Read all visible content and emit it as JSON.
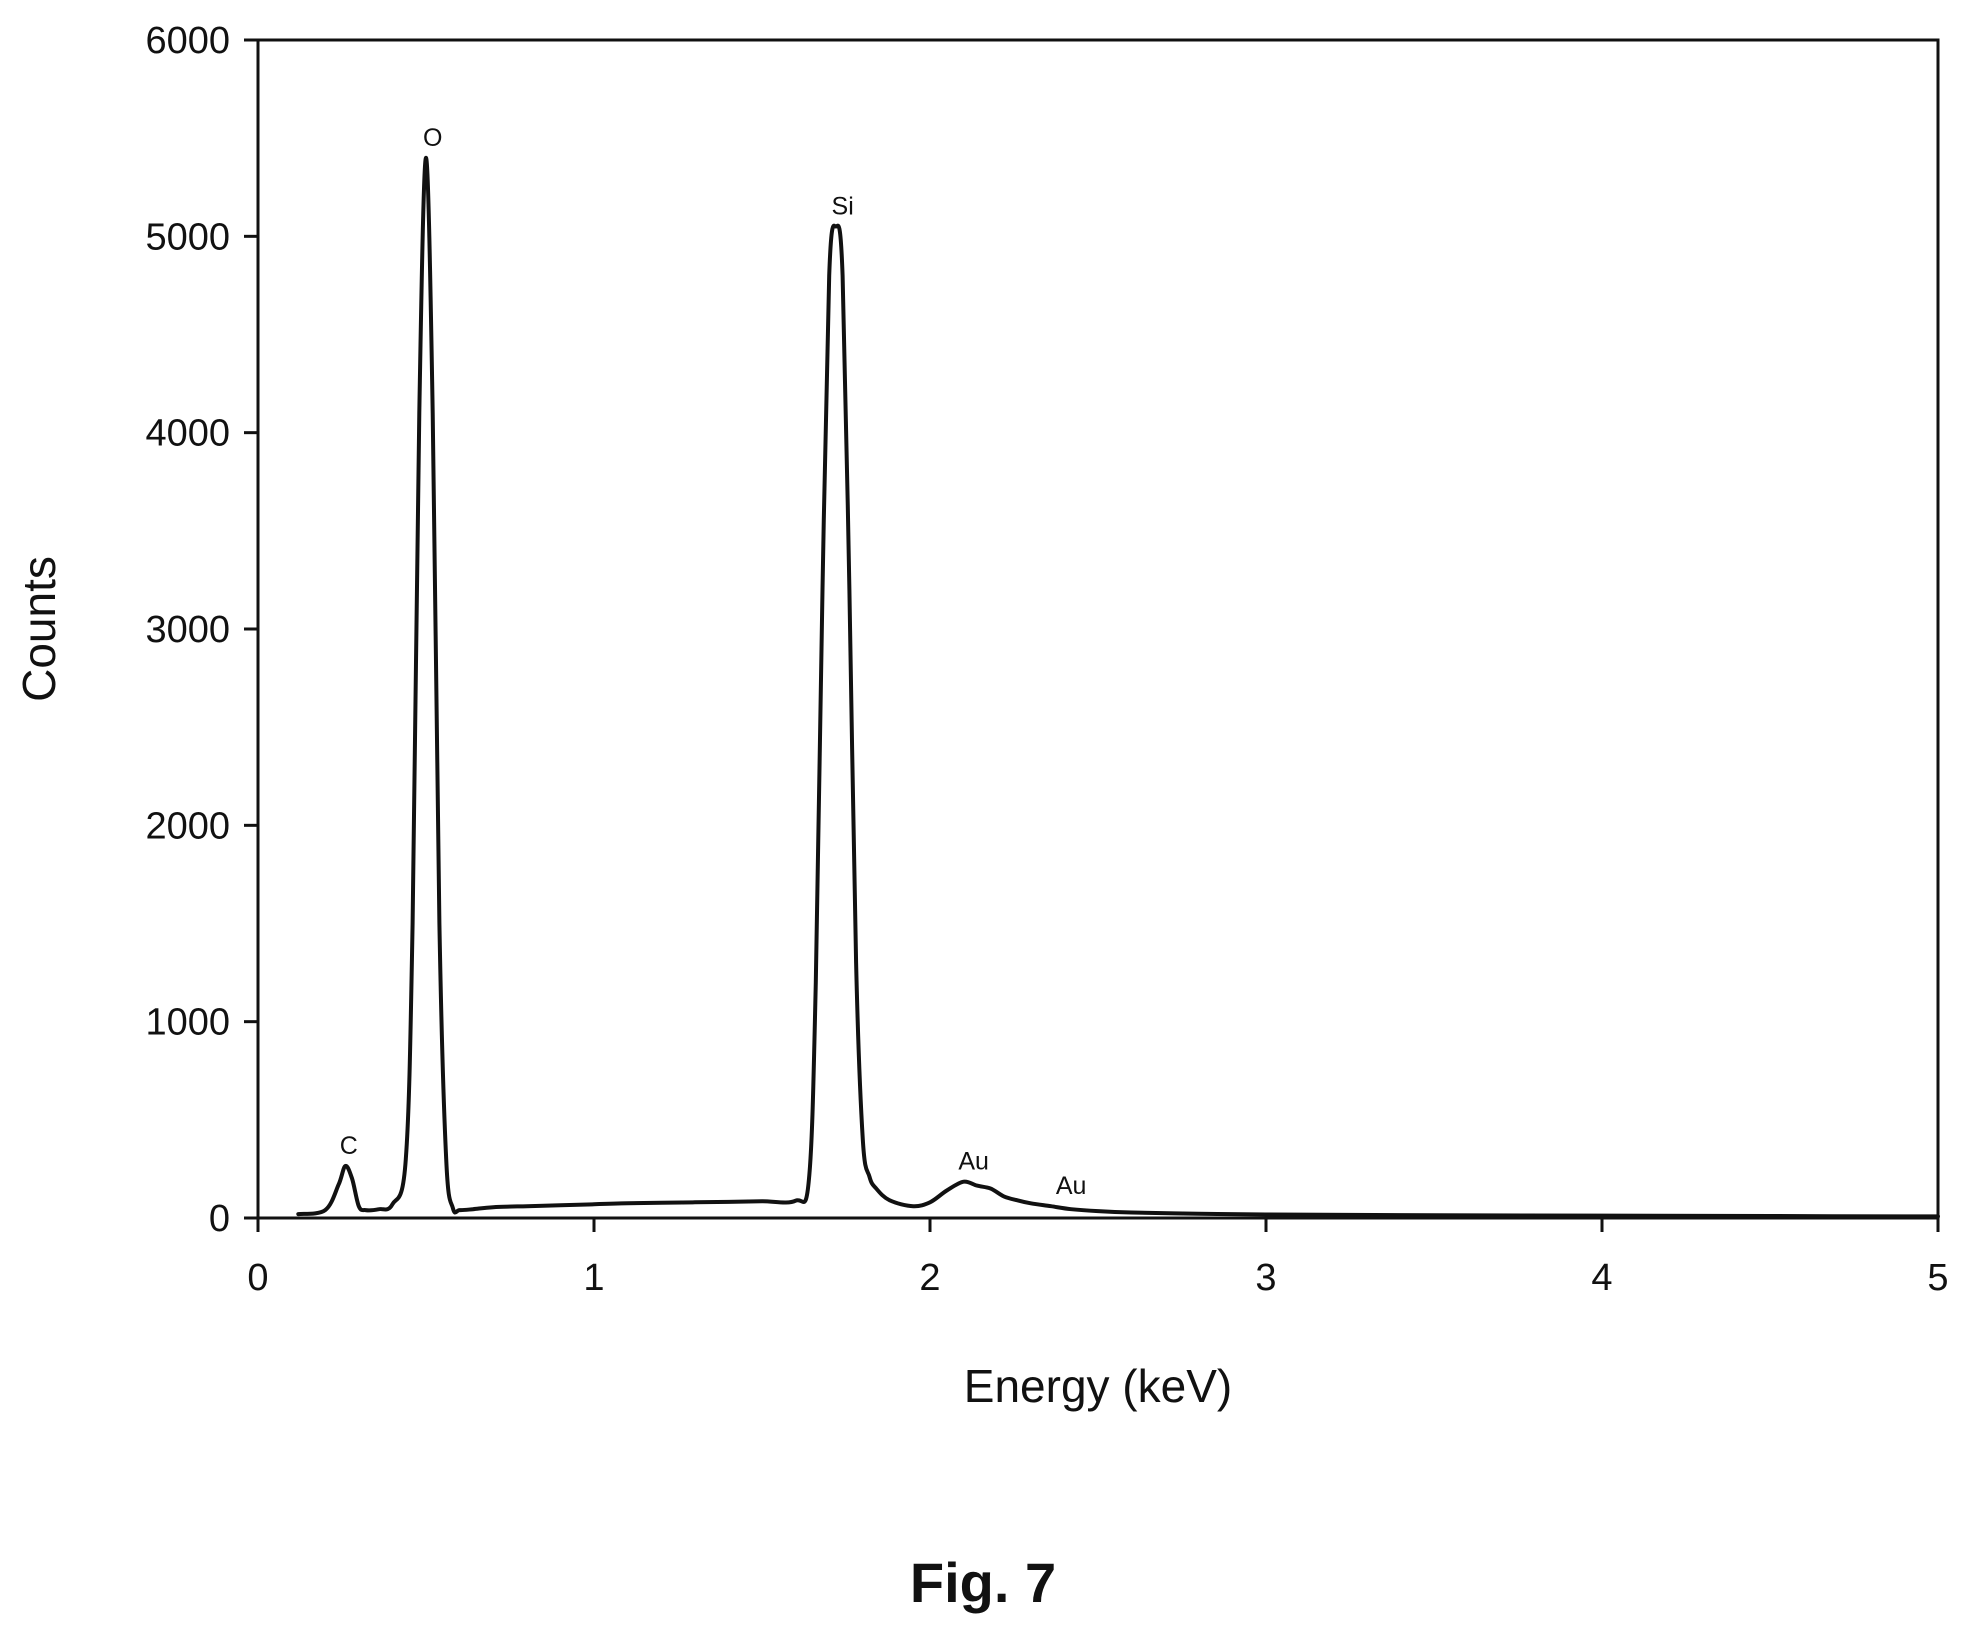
{
  "chart_data": {
    "type": "line",
    "title": "",
    "xlabel": "Energy (keV)",
    "ylabel": "Counts",
    "xlim": [
      0,
      5
    ],
    "ylim": [
      0,
      6000
    ],
    "xticks": [
      0,
      1,
      2,
      3,
      4,
      5
    ],
    "yticks": [
      0,
      1000,
      2000,
      3000,
      4000,
      5000,
      6000
    ],
    "xtick_labels": [
      "0",
      "1",
      "2",
      "3",
      "4",
      "5"
    ],
    "ytick_labels": [
      "0",
      "1000",
      "2000",
      "3000",
      "4000",
      "5000",
      "6000"
    ],
    "grid": false,
    "legend": "none",
    "line_color": "#111111",
    "series": [
      {
        "x": [
          0.12,
          0.2,
          0.24,
          0.26,
          0.28,
          0.3,
          0.32,
          0.36,
          0.4,
          0.44,
          0.46,
          0.48,
          0.5,
          0.52,
          0.54,
          0.56,
          0.58,
          0.6,
          0.64,
          0.7,
          0.8,
          0.9,
          1.0,
          1.1,
          1.2,
          1.3,
          1.4,
          1.5,
          1.6,
          1.64,
          1.66,
          1.68,
          1.7,
          1.72,
          1.74,
          1.76,
          1.78,
          1.8,
          1.82,
          1.84,
          1.88,
          1.95,
          2.0,
          2.05,
          2.1,
          2.14,
          2.18,
          2.22,
          2.26,
          2.3,
          2.36,
          2.42,
          2.5,
          2.6,
          2.8,
          3.0,
          3.5,
          4.0,
          4.5,
          5.0
        ],
        "y": [
          20,
          40,
          170,
          265,
          200,
          60,
          40,
          45,
          70,
          300,
          1500,
          4100,
          5400,
          4100,
          1500,
          300,
          50,
          40,
          45,
          55,
          60,
          65,
          70,
          75,
          78,
          80,
          82,
          85,
          88,
          200,
          1200,
          3200,
          4800,
          5050,
          4800,
          3200,
          1300,
          400,
          210,
          150,
          90,
          60,
          80,
          140,
          185,
          165,
          150,
          110,
          90,
          75,
          60,
          45,
          35,
          28,
          22,
          18,
          14,
          12,
          10,
          8
        ]
      }
    ],
    "annotations": [
      {
        "text": "C",
        "x": 0.27,
        "y": 265
      },
      {
        "text": "O",
        "x": 0.52,
        "y": 5400
      },
      {
        "text": "Si",
        "x": 1.74,
        "y": 5050
      },
      {
        "text": "Au",
        "x": 2.13,
        "y": 185
      },
      {
        "text": "Au",
        "x": 2.42,
        "y": 60
      }
    ]
  },
  "caption": "Fig. 7"
}
